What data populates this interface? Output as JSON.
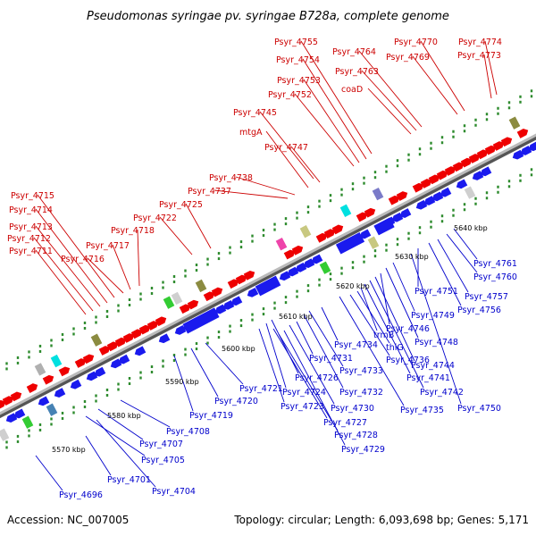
{
  "title": "Pseudomonas syringae pv. syringae B728a, complete genome",
  "footer": {
    "accession": "Accession: NC_007005",
    "summary": "Topology: circular; Length: 6,093,698 bp; Genes: 5,171"
  },
  "colors": {
    "forward": "#ee0000",
    "reverse": "#1a1aee",
    "backbone": "#888888",
    "tick": "#2e8b2e",
    "label_forward": "#cc0000",
    "label_reverse": "#0000cc"
  },
  "scale_ticks": [
    "5570 kbp",
    "5580 kbp",
    "5590 kbp",
    "5600 kbp",
    "5610 kbp",
    "5620 kbp",
    "5630 kbp",
    "5640 kbp"
  ],
  "labels_top": [
    "Psyr_4711",
    "Psyr_4712",
    "Psyr_4713",
    "Psyr_4714",
    "Psyr_4715",
    "Psyr_4716",
    "Psyr_4717",
    "Psyr_4718",
    "Psyr_4722",
    "Psyr_4725",
    "Psyr_4737",
    "Psyr_4738",
    "Psyr_4747",
    "mtgA",
    "Psyr_4745",
    "Psyr_4752",
    "Psyr_4753",
    "Psyr_4754",
    "Psyr_4755",
    "coaD",
    "Psyr_4763",
    "Psyr_4764",
    "Psyr_4769",
    "Psyr_4770",
    "Psyr_4773",
    "Psyr_4774"
  ],
  "labels_bottom": [
    "Psyr_4696",
    "Psyr_4704",
    "Psyr_4701",
    "Psyr_4705",
    "Psyr_4707",
    "Psyr_4708",
    "Psyr_4719",
    "Psyr_4720",
    "Psyr_4721",
    "Psyr_4723",
    "Psyr_4724",
    "Psyr_4726",
    "Psyr_4727",
    "Psyr_4728",
    "Psyr_4729",
    "Psyr_4730",
    "Psyr_4731",
    "Psyr_4732",
    "Psyr_4733",
    "Psyr_4734",
    "Psyr_4735",
    "Psyr_4736",
    "thiG",
    "trmB",
    "Psyr_4741",
    "Psyr_4742",
    "Psyr_4744",
    "Psyr_4746",
    "Psyr_4748",
    "Psyr_4749",
    "Psyr_4750",
    "Psyr_4751",
    "Psyr_4756",
    "Psyr_4757",
    "Psyr_4760",
    "Psyr_4761"
  ]
}
